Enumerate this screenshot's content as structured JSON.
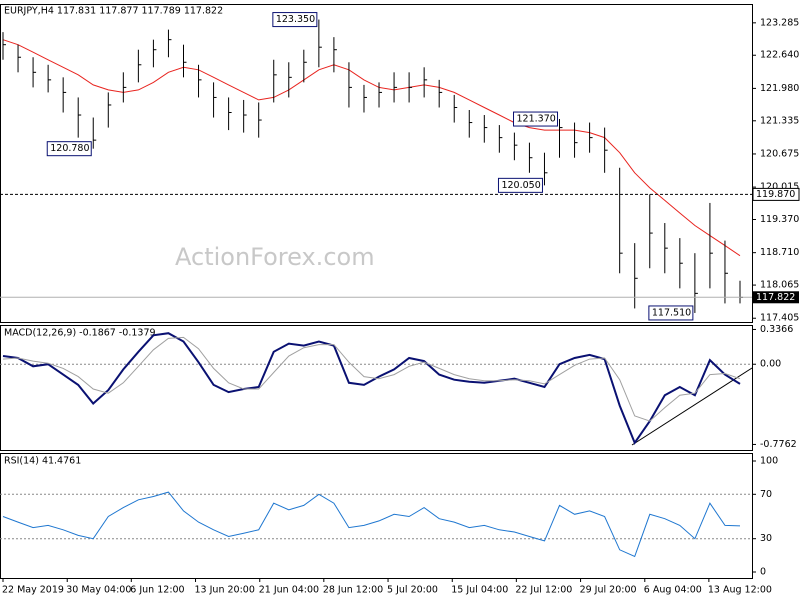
{
  "chart_data": [
    {
      "type": "ohlc",
      "title": "EURJPY,H4 117.831 117.877 117.789 117.822",
      "watermark": "ActionForex.com",
      "high": [
        123.1,
        122.85,
        122.6,
        122.45,
        122.2,
        121.8,
        121.4,
        121.9,
        122.3,
        122.75,
        122.95,
        123.15,
        122.85,
        122.45,
        122.1,
        121.8,
        121.75,
        121.7,
        122.55,
        122.5,
        122.75,
        123.35,
        123.0,
        122.5,
        122.05,
        122.1,
        122.3,
        122.3,
        122.4,
        122.15,
        121.85,
        121.55,
        121.45,
        121.25,
        121.1,
        120.9,
        120.7,
        121.37,
        121.3,
        121.3,
        121.2,
        120.4,
        118.9,
        119.87,
        119.3,
        119.0,
        118.7,
        119.7,
        118.95,
        118.15
      ],
      "low": [
        122.55,
        122.3,
        122.0,
        121.9,
        121.5,
        121.0,
        120.78,
        121.2,
        121.7,
        122.1,
        122.4,
        122.6,
        122.2,
        121.8,
        121.4,
        121.15,
        121.1,
        121.0,
        121.7,
        121.8,
        122.1,
        122.4,
        122.3,
        121.6,
        121.5,
        121.6,
        121.7,
        121.7,
        121.8,
        121.6,
        121.3,
        121.0,
        120.9,
        120.7,
        120.55,
        120.3,
        120.05,
        120.6,
        120.6,
        120.7,
        120.3,
        118.3,
        117.6,
        118.4,
        118.3,
        118.0,
        117.51,
        118.0,
        117.7,
        117.7
      ],
      "close": [
        122.85,
        122.6,
        122.3,
        122.15,
        121.9,
        121.45,
        120.95,
        121.65,
        122.0,
        122.45,
        122.75,
        122.95,
        122.5,
        122.15,
        121.8,
        121.5,
        121.45,
        121.35,
        122.25,
        122.2,
        122.5,
        122.8,
        122.75,
        122.0,
        121.8,
        121.9,
        122.0,
        122.0,
        122.15,
        121.9,
        121.6,
        121.3,
        121.2,
        121.0,
        120.85,
        120.6,
        120.3,
        121.2,
        120.9,
        121.0,
        120.75,
        118.7,
        118.2,
        119.1,
        118.8,
        118.5,
        117.9,
        118.7,
        118.3,
        117.82
      ],
      "color": "#000000",
      "ma": {
        "color": "#e8241f",
        "values": [
          122.95,
          122.85,
          122.7,
          122.55,
          122.4,
          122.25,
          122.05,
          121.95,
          121.9,
          121.95,
          122.1,
          122.3,
          122.4,
          122.35,
          122.2,
          122.05,
          121.9,
          121.75,
          121.8,
          121.95,
          122.15,
          122.35,
          122.45,
          122.35,
          122.15,
          122.0,
          121.95,
          122.0,
          122.05,
          122.0,
          121.9,
          121.75,
          121.6,
          121.45,
          121.3,
          121.2,
          121.15,
          121.15,
          121.15,
          121.1,
          121.0,
          120.7,
          120.3,
          120.0,
          119.75,
          119.5,
          119.25,
          119.05,
          118.85,
          118.65
        ]
      },
      "annotations": [
        {
          "label": "123.350",
          "value": 123.35,
          "x": 21
        },
        {
          "label": "120.780",
          "value": 120.78,
          "x": 6
        },
        {
          "label": "121.370",
          "value": 121.37,
          "x": 37
        },
        {
          "label": "120.050",
          "value": 120.05,
          "x": 36
        },
        {
          "label": "117.510",
          "value": 117.51,
          "x": 46
        }
      ],
      "hline": {
        "value": 119.87,
        "label": "119.870"
      },
      "last": {
        "value": 117.822,
        "label": "117.822"
      },
      "ylim": [
        117.33,
        123.64
      ],
      "yticks": [
        123.285,
        {
          "value": 122.64,
          "label": "122.640"
        },
        {
          "value": 121.98,
          "label": "121.980"
        },
        121.335,
        120.675,
        120.015,
        {
          "value": 119.37,
          "label": "119.370"
        },
        {
          "value": 118.71,
          "label": "118.710"
        },
        118.065,
        117.405
      ]
    },
    {
      "type": "macd",
      "title": "MACD(12,26,9) -0.1867 -0.1379",
      "series": [
        {
          "color": "#0a1172",
          "values": [
            0.08,
            0.06,
            -0.02,
            0.0,
            -0.1,
            -0.2,
            -0.38,
            -0.25,
            -0.05,
            0.12,
            0.28,
            0.3,
            0.22,
            0.02,
            -0.2,
            -0.27,
            -0.24,
            -0.22,
            0.12,
            0.2,
            0.18,
            0.22,
            0.18,
            -0.18,
            -0.2,
            -0.12,
            -0.05,
            0.06,
            0.03,
            -0.1,
            -0.15,
            -0.17,
            -0.18,
            -0.16,
            -0.14,
            -0.18,
            -0.22,
            0.0,
            0.06,
            0.09,
            0.05,
            -0.4,
            -0.76,
            -0.55,
            -0.3,
            -0.22,
            -0.3,
            0.04,
            -0.1,
            -0.19
          ]
        },
        {
          "color": "#a0a0a0",
          "values": [
            0.05,
            0.06,
            0.03,
            0.01,
            -0.04,
            -0.12,
            -0.24,
            -0.28,
            -0.18,
            -0.02,
            0.14,
            0.25,
            0.26,
            0.15,
            -0.04,
            -0.18,
            -0.24,
            -0.24,
            -0.08,
            0.08,
            0.16,
            0.19,
            0.19,
            0.02,
            -0.12,
            -0.14,
            -0.1,
            -0.02,
            0.02,
            -0.04,
            -0.1,
            -0.14,
            -0.16,
            -0.16,
            -0.15,
            -0.16,
            -0.19,
            -0.1,
            -0.01,
            0.05,
            0.06,
            -0.15,
            -0.5,
            -0.55,
            -0.42,
            -0.3,
            -0.28,
            -0.1,
            -0.09,
            -0.14
          ]
        }
      ],
      "ylim": [
        -0.83,
        0.37
      ],
      "yticks": [
        0.3366,
        {
          "value": 0,
          "label": "0.00"
        },
        -0.7762
      ]
    },
    {
      "type": "rsi",
      "title": "RSI(14) 41.4761",
      "series": [
        {
          "color": "#1f77d0",
          "values": [
            50,
            45,
            40,
            42,
            38,
            33,
            30,
            50,
            58,
            65,
            68,
            72,
            55,
            45,
            38,
            32,
            35,
            38,
            62,
            56,
            60,
            70,
            62,
            40,
            42,
            46,
            52,
            50,
            58,
            48,
            45,
            40,
            42,
            38,
            36,
            32,
            28,
            60,
            52,
            55,
            50,
            20,
            14,
            52,
            48,
            42,
            30,
            62,
            42,
            41.5
          ]
        }
      ],
      "level_lines": [
        70,
        30
      ],
      "ylim": [
        -5.4,
        105.4
      ],
      "yticks": [
        100,
        70,
        30,
        0
      ],
      "xticks": [
        {
          "value": 0,
          "label": "22 May 2019"
        },
        {
          "value": 4.27,
          "label": "30 May 04:00"
        },
        {
          "value": 8.53,
          "label": "6 Jun 12:00"
        },
        {
          "value": 12.8,
          "label": "13 Jun 20:00"
        },
        {
          "value": 17.07,
          "label": "21 Jun 04:00"
        },
        {
          "value": 21.33,
          "label": "28 Jun 12:00"
        },
        {
          "value": 25.6,
          "label": "5 Jul 20:00"
        },
        {
          "value": 29.87,
          "label": "15 Jul 04:00"
        },
        {
          "value": 34.13,
          "label": "22 Jul 12:00"
        },
        {
          "value": 38.4,
          "label": "29 Jul 20:00"
        },
        {
          "value": 42.67,
          "label": "6 Aug 04:00"
        },
        {
          "value": 46.93,
          "label": "13 Aug 12:00"
        }
      ]
    }
  ]
}
